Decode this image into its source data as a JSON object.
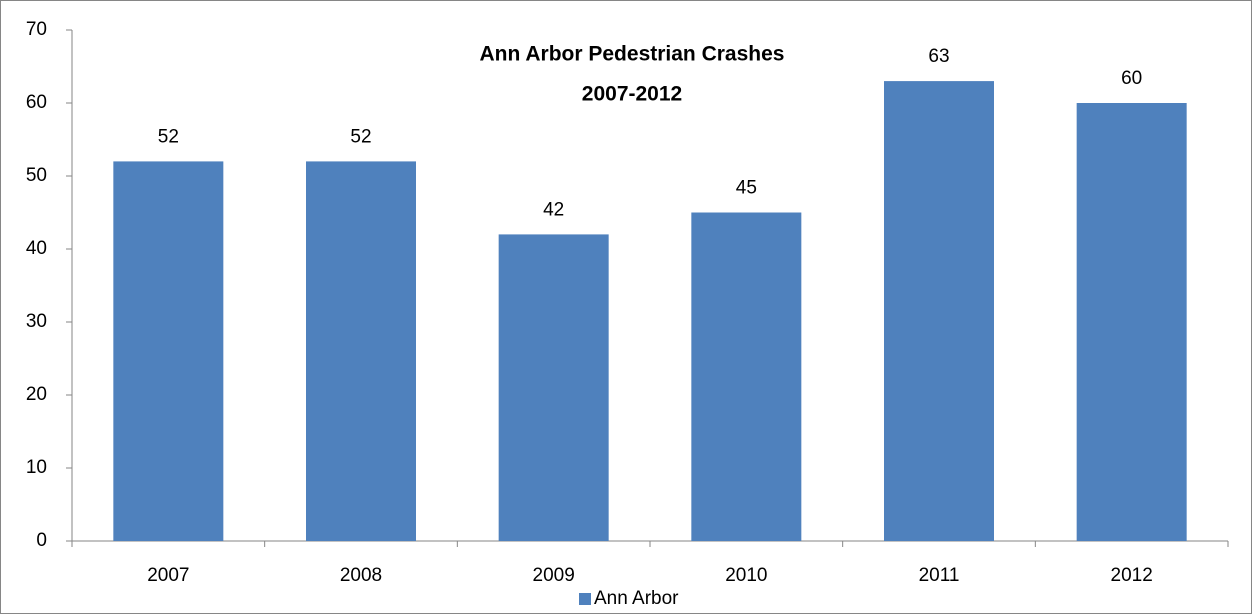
{
  "chart_data": {
    "type": "bar",
    "title": "Ann Arbor Pedestrian Crashes",
    "subtitle": "2007-2012",
    "categories": [
      "2007",
      "2008",
      "2009",
      "2010",
      "2011",
      "2012"
    ],
    "series": [
      {
        "name": "Ann Arbor",
        "color": "#4f81bd",
        "values": [
          52,
          52,
          42,
          45,
          63,
          60
        ]
      }
    ],
    "ylim": [
      0,
      70
    ],
    "yticks": [
      0,
      10,
      20,
      30,
      40,
      50,
      60,
      70
    ],
    "grid": false,
    "legend": "bottom"
  }
}
